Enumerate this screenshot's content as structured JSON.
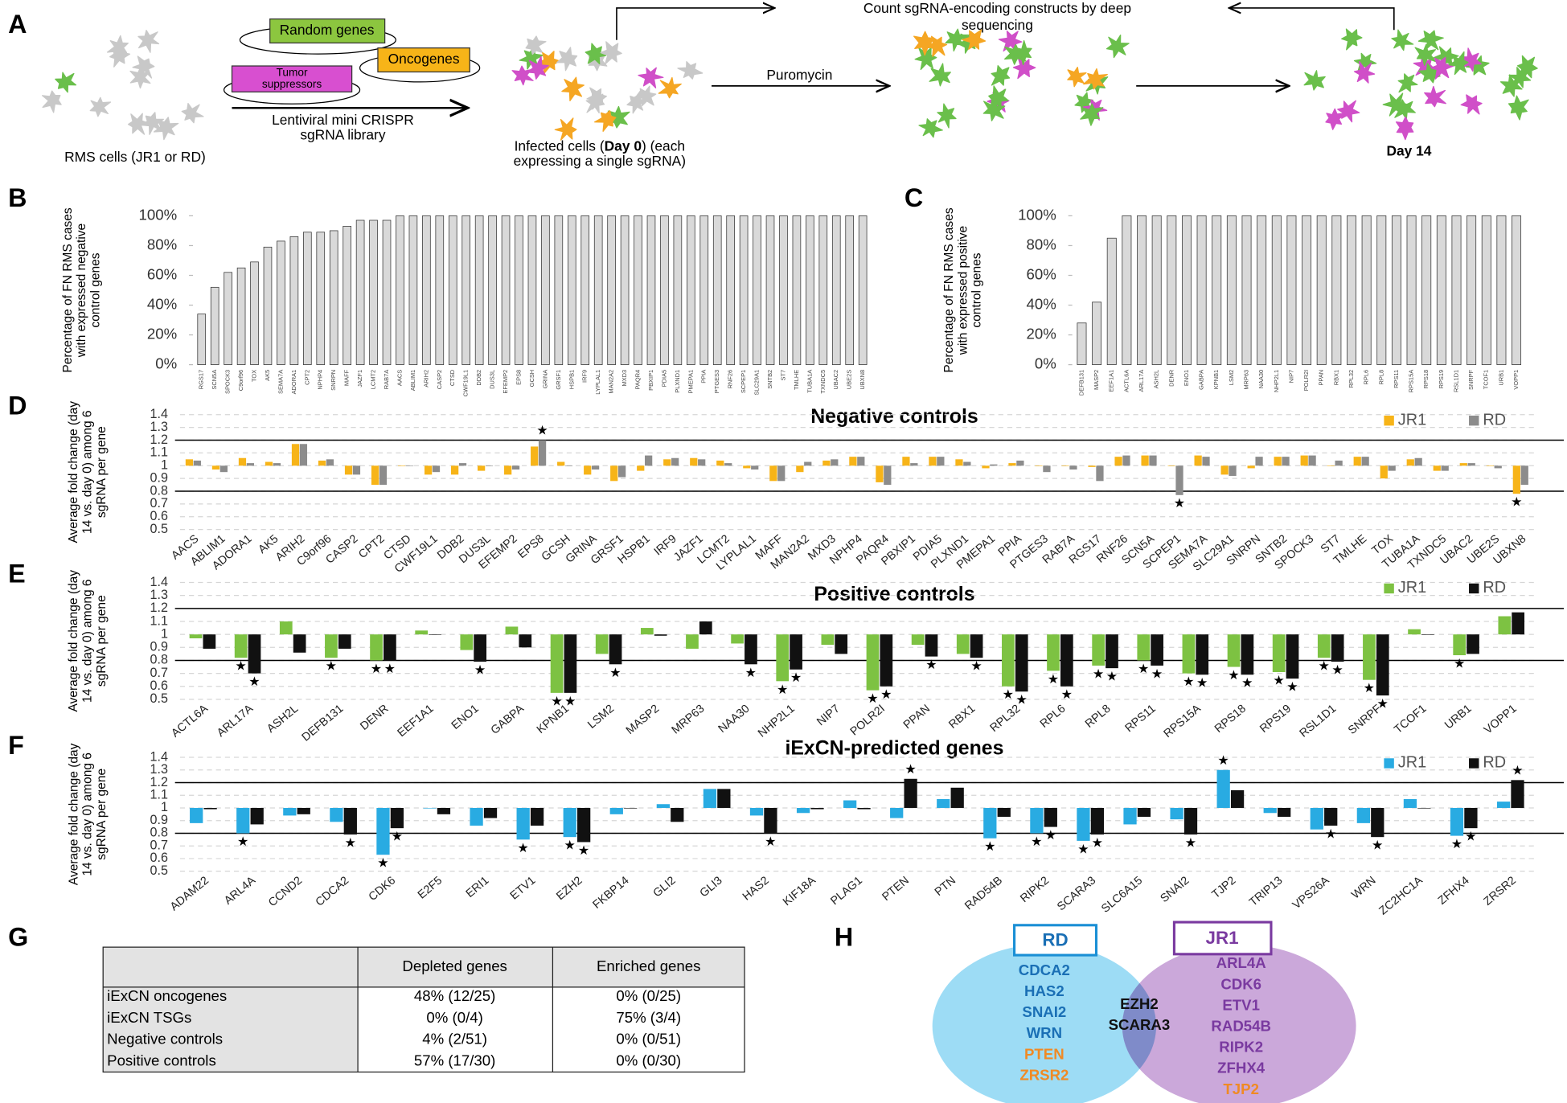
{
  "panel_A": {
    "panel_label": "A",
    "random_genes": "Random genes",
    "oncogenes": "Oncogenes",
    "tumor_suppressors": [
      "Tumor",
      "suppressors"
    ],
    "library": [
      "Lentiviral mini CRISPR",
      "sgRNA library"
    ],
    "rms_cells": "RMS cells (JR1 or RD)",
    "infected": [
      "Infected cells (",
      "Day 0",
      ") (each",
      "expressing a single sgRNA)"
    ],
    "puromycin": "Puromycin",
    "count": [
      "Count sgRNA-encoding constructs by deep",
      "sequencing"
    ],
    "day14": "Day 14"
  },
  "chart_data": [
    {
      "panel_label": "B",
      "type": "bar",
      "ylabel": [
        "Percentage of FN RMS cases",
        "with expressed negative",
        "control genes"
      ],
      "categories": [
        "RGS17",
        "SCN5A",
        "SPOCK3",
        "C9orf96",
        "TOX",
        "AK5",
        "SEMA7A",
        "ADORA1",
        "CPT2",
        "NPHP4",
        "SNRPN",
        "MAFF",
        "JAZF1",
        "LCMT2",
        "RAB7A",
        "AACS",
        "ABLIM1",
        "ARIH2",
        "CASP2",
        "CTSD",
        "CWF19L1",
        "DDB2",
        "DUS3L",
        "EFEMP2",
        "EPS8",
        "GCSH",
        "GRINA",
        "GRSF1",
        "HSPB1",
        "IRF9",
        "LYPLAL1",
        "MAN2A2",
        "MXD3",
        "PAQR4",
        "PBXIP1",
        "PDIA5",
        "PLXND1",
        "PMEPA1",
        "PPIA",
        "PTGES3",
        "RNF26",
        "SCPEP1",
        "SLC29A1",
        "SNTB2",
        "ST7",
        "TMLHE",
        "TUBA1A",
        "TXNDC5",
        "UBAC2",
        "UBE2S",
        "UBXN8"
      ],
      "values": [
        34,
        52,
        62,
        65,
        69,
        79,
        83,
        86,
        89,
        89,
        90,
        93,
        97,
        97,
        97,
        100,
        100,
        100,
        100,
        100,
        100,
        100,
        100,
        100,
        100,
        100,
        100,
        100,
        100,
        100,
        100,
        100,
        100,
        100,
        100,
        100,
        100,
        100,
        100,
        100,
        100,
        100,
        100,
        100,
        100,
        100,
        100,
        100,
        100,
        100,
        100
      ],
      "color": "#d9d9d9",
      "ylim": [
        0,
        100
      ],
      "yticks": [
        {
          "value": 0,
          "label": "0%"
        },
        {
          "value": 20,
          "label": "20%"
        },
        {
          "value": 40,
          "label": "40%"
        },
        {
          "value": 60,
          "label": "60%"
        },
        {
          "value": 80,
          "label": "80%"
        },
        {
          "value": 100,
          "label": "100%"
        }
      ]
    },
    {
      "panel_label": "C",
      "type": "bar",
      "ylabel": [
        "Percentage of FN RMS cases",
        "with expressed positive",
        "control genes"
      ],
      "categories": [
        "DEFB131",
        "MASP2",
        "EEF1A1",
        "ACTL6A",
        "ARL17A",
        "ASH2L",
        "DENR",
        "ENO1",
        "GABPA",
        "KPNB1",
        "LSM2",
        "MRP63",
        "NAA30",
        "NHP2L1",
        "NIP7",
        "POLR2I",
        "PPAN",
        "RBX1",
        "RPL32",
        "RPL6",
        "RPL8",
        "RPS11",
        "RPS15A",
        "RPS18",
        "RPS19",
        "RSL1D1",
        "SNRPF",
        "TCOF1",
        "URB1",
        "VOPP1"
      ],
      "values": [
        28,
        42,
        85,
        100,
        100,
        100,
        100,
        100,
        100,
        100,
        100,
        100,
        100,
        100,
        100,
        100,
        100,
        100,
        100,
        100,
        100,
        100,
        100,
        100,
        100,
        100,
        100,
        100,
        100,
        100
      ],
      "color": "#d9d9d9",
      "ylim": [
        0,
        100
      ],
      "yticks": [
        {
          "value": 0,
          "label": "0%"
        },
        {
          "value": 20,
          "label": "20%"
        },
        {
          "value": 40,
          "label": "40%"
        },
        {
          "value": 60,
          "label": "60%"
        },
        {
          "value": 80,
          "label": "80%"
        },
        {
          "value": 100,
          "label": "100%"
        }
      ]
    },
    {
      "panel_label": "D",
      "type": "grouped_bar",
      "title": "Negative controls",
      "ylabel": [
        "Average fold change (day",
        "14 vs. day 0) among 6",
        "sgRNA per gene"
      ],
      "categories": [
        "AACS",
        "ABLIM1",
        "ADORA1",
        "AK5",
        "ARIH2",
        "C9orf96",
        "CASP2",
        "CPT2",
        "CTSD",
        "CWF19L1",
        "DDB2",
        "DUS3L",
        "EFEMP2",
        "EPS8",
        "GCSH",
        "GRINA",
        "GRSF1",
        "HSPB1",
        "IRF9",
        "JAZF1",
        "LCMT2",
        "LYPLAL1",
        "MAFF",
        "MAN2A2",
        "MXD3",
        "NPHP4",
        "PAQR4",
        "PBXIP1",
        "PDIA5",
        "PLXND1",
        "PMEPA1",
        "PPIA",
        "PTGES3",
        "RAB7A",
        "RGS17",
        "RNF26",
        "SCN5A",
        "SCPEP1",
        "SEMA7A",
        "SLC29A1",
        "SNRPN",
        "SNTB2",
        "SPOCK3",
        "ST7",
        "TMLHE",
        "TOX",
        "TUBA1A",
        "TXNDC5",
        "UBAC2",
        "UBE2S",
        "UBXN8"
      ],
      "series": [
        {
          "name": "JR1",
          "color": "#f7b418",
          "values": [
            1.05,
            0.97,
            1.06,
            1.03,
            1.17,
            1.04,
            0.93,
            0.85,
            1.0,
            0.93,
            0.93,
            0.96,
            0.93,
            1.15,
            1.03,
            0.93,
            0.88,
            0.96,
            1.05,
            1.06,
            1.04,
            0.98,
            0.88,
            0.95,
            1.04,
            1.07,
            0.87,
            1.07,
            1.07,
            1.05,
            0.98,
            1.02,
            1.0,
            1.0,
            0.99,
            1.07,
            1.08,
            1.0,
            1.08,
            0.93,
            0.98,
            1.07,
            1.08,
            1.0,
            1.07,
            0.9,
            1.05,
            0.96,
            1.02,
            1.0,
            0.78
          ],
          "stars": [
            50
          ]
        },
        {
          "name": "RD",
          "color": "#8c8c8c",
          "values": [
            1.04,
            0.95,
            1.02,
            1.02,
            1.17,
            1.05,
            0.93,
            0.85,
            1.0,
            0.95,
            1.02,
            1.0,
            0.97,
            1.2,
            1.0,
            0.97,
            0.91,
            1.08,
            1.06,
            1.05,
            1.02,
            0.97,
            0.88,
            1.03,
            1.05,
            1.07,
            0.85,
            1.02,
            1.07,
            1.03,
            1.01,
            1.04,
            0.95,
            0.97,
            0.88,
            1.08,
            1.08,
            0.77,
            1.07,
            0.92,
            1.07,
            1.07,
            1.08,
            1.04,
            1.07,
            0.96,
            1.06,
            0.96,
            1.02,
            0.98,
            0.85
          ],
          "stars": [
            13,
            37
          ]
        }
      ],
      "ylim": [
        0.5,
        1.4
      ],
      "yticks": [
        0.5,
        0.6,
        0.7,
        0.8,
        0.9,
        1,
        1.1,
        1.2,
        1.3,
        1.4
      ],
      "baseline": 1,
      "reference_lines": [
        0.8,
        1.2
      ],
      "grid": true,
      "legend": "top-right",
      "star_symbol": "★"
    },
    {
      "panel_label": "E",
      "type": "grouped_bar",
      "title": "Positive controls",
      "ylabel": [
        "Average fold change (day",
        "14 vs. day 0) among 6",
        "sgRNA per gene"
      ],
      "categories": [
        "ACTL6A",
        "ARL17A",
        "ASH2L",
        "DEFB131",
        "DENR",
        "EEF1A1",
        "ENO1",
        "GABPA",
        "KPNB1",
        "LSM2",
        "MASP2",
        "MRP63",
        "NAA30",
        "NHP2L1",
        "NIP7",
        "POLR2I",
        "PPAN",
        "RBX1",
        "RPL32",
        "RPL6",
        "RPL8",
        "RPS11",
        "RPS15A",
        "RPS18",
        "RPS19",
        "RSL1D1",
        "SNRPF",
        "TCOF1",
        "URB1",
        "VOPP1"
      ],
      "series": [
        {
          "name": "JR1",
          "color": "#7dc242",
          "values": [
            0.97,
            0.82,
            1.1,
            0.82,
            0.8,
            1.03,
            0.88,
            1.06,
            0.55,
            0.85,
            1.05,
            0.89,
            0.93,
            0.64,
            0.92,
            0.57,
            0.92,
            0.85,
            0.6,
            0.72,
            0.76,
            0.8,
            0.7,
            0.75,
            0.71,
            0.82,
            0.65,
            1.04,
            0.84,
            1.14
          ],
          "stars": [
            1,
            3,
            4,
            8,
            13,
            15,
            18,
            19,
            20,
            21,
            22,
            23,
            24,
            25,
            26,
            28
          ]
        },
        {
          "name": "RD",
          "color": "#111111",
          "values": [
            0.89,
            0.7,
            0.86,
            0.89,
            0.8,
            1.0,
            0.79,
            0.9,
            0.55,
            0.77,
            0.99,
            1.1,
            0.77,
            0.73,
            0.85,
            0.6,
            0.83,
            0.82,
            0.56,
            0.6,
            0.74,
            0.76,
            0.69,
            0.69,
            0.66,
            0.79,
            0.53,
            1.0,
            0.85,
            1.17
          ],
          "stars": [
            1,
            4,
            6,
            8,
            9,
            12,
            13,
            15,
            16,
            17,
            18,
            19,
            20,
            21,
            22,
            23,
            24,
            25,
            26
          ]
        }
      ],
      "ylim": [
        0.5,
        1.4
      ],
      "yticks": [
        0.5,
        0.6,
        0.7,
        0.8,
        0.9,
        1,
        1.1,
        1.2,
        1.3,
        1.4
      ],
      "baseline": 1,
      "reference_lines": [
        0.8,
        1.2
      ],
      "grid": true,
      "legend": "top-right",
      "star_symbol": "★"
    },
    {
      "panel_label": "F",
      "type": "grouped_bar",
      "title": "iExCN-predicted genes",
      "ylabel": [
        "Average fold change (day",
        "14 vs. day 0) among 6",
        "sgRNA per gene"
      ],
      "categories": [
        "ADAM22",
        "ARL4A",
        "CCND2",
        "CDCA2",
        "CDK6",
        "E2F5",
        "ERI1",
        "ETV1",
        "EZH2",
        "FKBP14",
        "GLI2",
        "GLI3",
        "HAS2",
        "KIF18A",
        "PLAG1",
        "PTEN",
        "PTN",
        "RAD54B",
        "RIPK2",
        "SCARA3",
        "SLC6A15",
        "SNAI2",
        "TJP2",
        "TRIP13",
        "VPS26A",
        "WRN",
        "ZC2HC1A",
        "ZFHX4",
        "ZRSR2"
      ],
      "series": [
        {
          "name": "JR1",
          "color": "#29abe2",
          "values": [
            0.88,
            0.8,
            0.94,
            0.89,
            0.63,
            1.0,
            0.86,
            0.75,
            0.77,
            0.95,
            1.03,
            1.15,
            0.94,
            0.96,
            1.06,
            0.92,
            1.07,
            0.76,
            0.8,
            0.74,
            0.87,
            0.91,
            1.3,
            0.96,
            0.83,
            0.88,
            1.07,
            0.78,
            1.05
          ],
          "stars": [
            1,
            4,
            7,
            8,
            17,
            18,
            19,
            22,
            27
          ]
        },
        {
          "name": "RD",
          "color": "#111111",
          "values": [
            0.99,
            0.87,
            0.95,
            0.79,
            0.84,
            0.95,
            0.92,
            0.86,
            0.73,
            1.0,
            0.89,
            1.15,
            0.8,
            0.99,
            0.99,
            1.23,
            1.16,
            0.93,
            0.85,
            0.79,
            0.93,
            0.79,
            1.14,
            0.93,
            0.86,
            0.77,
            1.0,
            0.84,
            1.22
          ],
          "stars": [
            3,
            4,
            8,
            12,
            15,
            18,
            19,
            21,
            24,
            25,
            27,
            28
          ]
        }
      ],
      "ylim": [
        0.5,
        1.4
      ],
      "yticks": [
        0.5,
        0.6,
        0.7,
        0.8,
        0.9,
        1,
        1.1,
        1.2,
        1.3,
        1.4
      ],
      "baseline": 1,
      "reference_lines": [
        0.8,
        1.2
      ],
      "grid": true,
      "legend": "top-right",
      "star_symbol": "★"
    }
  ],
  "panel_G": {
    "panel_label": "G",
    "table": {
      "header": [
        "Depleted genes",
        "Enriched genes"
      ],
      "rows": [
        [
          "iExCN oncogenes",
          "48% (12/25)",
          "0% (0/25)"
        ],
        [
          "iExCN TSGs",
          "0% (0/4)",
          "75% (3/4)"
        ],
        [
          "Negative controls",
          "4% (2/51)",
          "0% (0/51)"
        ],
        [
          "Positive controls",
          "57% (17/30)",
          "0% (0/30)"
        ]
      ]
    }
  },
  "panel_H": {
    "panel_label": "H",
    "rd_label": "RD",
    "jr1_label": "JR1",
    "rd_only": [
      {
        "text": "CDCA2",
        "color": "#1a6fb5"
      },
      {
        "text": "HAS2",
        "color": "#1a6fb5"
      },
      {
        "text": "SNAI2",
        "color": "#1a6fb5"
      },
      {
        "text": "WRN",
        "color": "#1a6fb5"
      },
      {
        "text": "PTEN",
        "color": "#f08a24"
      },
      {
        "text": "ZRSR2",
        "color": "#f08a24"
      }
    ],
    "shared": [
      {
        "text": "EZH2",
        "color": "#111111"
      },
      {
        "text": "SCARA3",
        "color": "#111111"
      }
    ],
    "jr1_only": [
      {
        "text": "ARL4A",
        "color": "#7a3aa0"
      },
      {
        "text": "CDK6",
        "color": "#7a3aa0"
      },
      {
        "text": "ETV1",
        "color": "#7a3aa0"
      },
      {
        "text": "RAD54B",
        "color": "#7a3aa0"
      },
      {
        "text": "RIPK2",
        "color": "#7a3aa0"
      },
      {
        "text": "ZFHX4",
        "color": "#7a3aa0"
      },
      {
        "text": "TJP2",
        "color": "#f08a24"
      }
    ]
  }
}
